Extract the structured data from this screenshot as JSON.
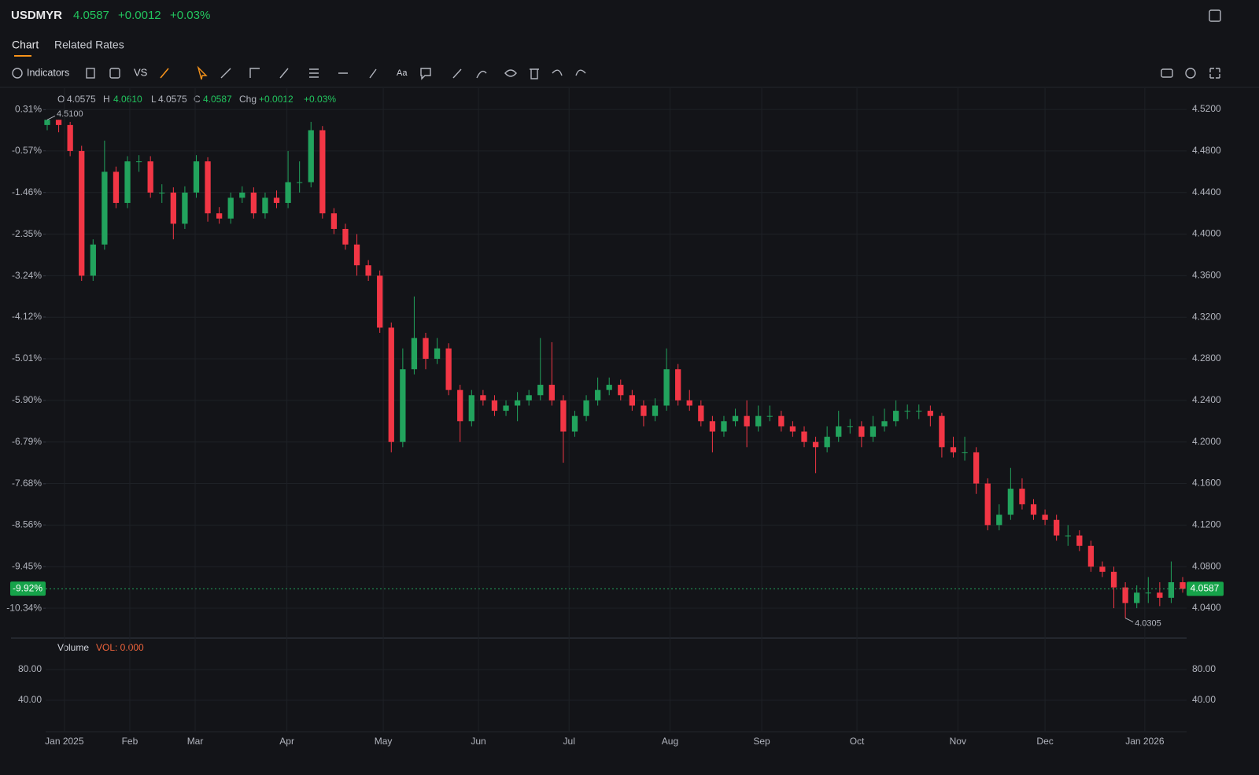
{
  "header": {
    "symbol": "USDMYR",
    "price": 4.0587,
    "change": {
      "value": 0.0012,
      "label": "+0.0012"
    },
    "change_pct": {
      "value": 0.03,
      "label": "+0.03%"
    }
  },
  "tabs": [
    "Chart",
    "Related Rates"
  ],
  "toolbar": {
    "indicators": "Indicators",
    "compare": "VS",
    "text": "Aa"
  },
  "chart_data": {
    "type": "candlestick",
    "up_color": "#22a35d",
    "down_color": "#f23645",
    "grid": true,
    "legend": [
      {
        "key": "O",
        "value": 4.0575
      },
      {
        "key": "H",
        "value": {
          "value": 4.061,
          "label": "4.0610"
        }
      },
      {
        "key": "L",
        "value": 4.0575
      },
      {
        "key": "C",
        "value": 4.0587
      },
      {
        "key": "Chg",
        "value": {
          "value": 0.0012,
          "label": "+0.0012"
        }
      },
      {
        "key": "",
        "value": {
          "value": 0.03,
          "label": "+0.03%"
        }
      }
    ],
    "open": [
      4.505,
      4.51,
      4.505,
      4.48,
      4.36,
      4.39,
      4.46,
      4.43,
      4.47,
      4.47,
      4.44,
      4.44,
      4.41,
      4.44,
      4.47,
      4.42,
      4.415,
      4.435,
      4.44,
      4.42,
      4.435,
      4.43,
      4.45,
      4.45,
      4.5,
      4.42,
      4.405,
      4.39,
      4.37,
      4.36,
      4.31,
      4.2,
      4.27,
      4.3,
      4.28,
      4.29,
      4.25,
      4.22,
      4.245,
      4.24,
      4.23,
      4.235,
      4.24,
      4.245,
      4.255,
      4.24,
      4.21,
      4.225,
      4.24,
      4.25,
      4.255,
      4.245,
      4.235,
      4.225,
      4.235,
      4.27,
      4.24,
      4.235,
      4.22,
      4.21,
      4.22,
      4.225,
      4.215,
      4.225,
      4.225,
      4.215,
      4.21,
      4.2,
      4.195,
      4.205,
      4.215,
      4.215,
      4.205,
      4.215,
      4.22,
      4.23,
      4.23,
      4.23,
      4.225,
      4.195,
      4.19,
      4.19,
      4.16,
      4.12,
      4.13,
      4.155,
      4.14,
      4.13,
      4.125,
      4.11,
      4.11,
      4.1,
      4.08,
      4.075,
      4.06,
      4.045,
      4.055,
      4.055,
      4.05,
      4.065
    ],
    "high": [
      4.51,
      4.51,
      4.508,
      4.485,
      4.395,
      4.49,
      4.465,
      4.475,
      4.476,
      4.475,
      4.448,
      4.445,
      4.446,
      4.476,
      4.474,
      4.426,
      4.44,
      4.446,
      4.445,
      4.44,
      4.442,
      4.48,
      4.47,
      4.508,
      4.504,
      4.425,
      4.41,
      4.4,
      4.375,
      4.365,
      4.315,
      4.29,
      4.34,
      4.305,
      4.3,
      4.295,
      4.255,
      4.25,
      4.25,
      4.245,
      4.24,
      4.248,
      4.25,
      4.3,
      4.296,
      4.245,
      4.23,
      4.245,
      4.262,
      4.262,
      4.26,
      4.25,
      4.24,
      4.242,
      4.29,
      4.275,
      4.25,
      4.24,
      4.225,
      4.225,
      4.232,
      4.24,
      4.235,
      4.235,
      4.23,
      4.22,
      4.215,
      4.205,
      4.215,
      4.23,
      4.222,
      4.22,
      4.225,
      4.232,
      4.24,
      4.236,
      4.236,
      4.235,
      4.228,
      4.205,
      4.205,
      4.195,
      4.165,
      4.14,
      4.175,
      4.165,
      4.145,
      4.135,
      4.13,
      4.12,
      4.115,
      4.105,
      4.085,
      4.08,
      4.065,
      4.062,
      4.07,
      4.065,
      4.085,
      4.07
    ],
    "low": [
      4.5,
      4.498,
      4.475,
      4.355,
      4.355,
      4.385,
      4.425,
      4.425,
      4.46,
      4.435,
      4.43,
      4.395,
      4.405,
      4.435,
      4.412,
      4.41,
      4.41,
      4.43,
      4.415,
      4.415,
      4.425,
      4.425,
      4.44,
      4.445,
      4.415,
      4.4,
      4.385,
      4.36,
      4.355,
      4.305,
      4.19,
      4.195,
      4.265,
      4.27,
      4.275,
      4.245,
      4.2,
      4.215,
      4.235,
      4.225,
      4.225,
      4.22,
      4.235,
      4.24,
      4.235,
      4.18,
      4.205,
      4.22,
      4.235,
      4.245,
      4.24,
      4.23,
      4.215,
      4.22,
      4.23,
      4.235,
      4.23,
      4.215,
      4.19,
      4.205,
      4.215,
      4.195,
      4.21,
      4.22,
      4.21,
      4.205,
      4.195,
      4.17,
      4.19,
      4.2,
      4.208,
      4.195,
      4.2,
      4.21,
      4.215,
      4.222,
      4.222,
      4.215,
      4.185,
      4.185,
      4.182,
      4.15,
      4.115,
      4.115,
      4.125,
      4.135,
      4.125,
      4.12,
      4.105,
      4.1,
      4.095,
      4.075,
      4.07,
      4.04,
      4.0305,
      4.04,
      4.045,
      4.042,
      4.045,
      4.055
    ],
    "close": [
      4.51,
      4.505,
      4.48,
      4.36,
      4.39,
      4.46,
      4.43,
      4.47,
      4.47,
      4.44,
      4.44,
      4.41,
      4.44,
      4.47,
      4.42,
      4.415,
      4.435,
      4.44,
      4.42,
      4.435,
      4.43,
      4.45,
      4.45,
      4.5,
      4.42,
      4.405,
      4.39,
      4.37,
      4.36,
      4.31,
      4.2,
      4.27,
      4.3,
      4.28,
      4.29,
      4.25,
      4.22,
      4.245,
      4.24,
      4.23,
      4.235,
      4.24,
      4.245,
      4.255,
      4.24,
      4.21,
      4.225,
      4.24,
      4.25,
      4.255,
      4.245,
      4.235,
      4.225,
      4.235,
      4.27,
      4.24,
      4.235,
      4.22,
      4.21,
      4.22,
      4.225,
      4.215,
      4.225,
      4.225,
      4.215,
      4.21,
      4.2,
      4.195,
      4.205,
      4.215,
      4.215,
      4.205,
      4.215,
      4.22,
      4.23,
      4.23,
      4.23,
      4.225,
      4.195,
      4.19,
      4.19,
      4.16,
      4.12,
      4.13,
      4.155,
      4.14,
      4.13,
      4.125,
      4.11,
      4.11,
      4.1,
      4.08,
      4.075,
      4.06,
      4.045,
      4.055,
      4.055,
      4.05,
      4.065,
      4.0587
    ],
    "xticks": [
      {
        "value": 1.5,
        "label": "Jan 2025"
      },
      {
        "value": 7.2,
        "label": "Feb"
      },
      {
        "value": 12.9,
        "label": "Mar"
      },
      {
        "value": 20.9,
        "label": "Apr"
      },
      {
        "value": 29.3,
        "label": "May"
      },
      {
        "value": 37.6,
        "label": "Jun"
      },
      {
        "value": 45.5,
        "label": "Jul"
      },
      {
        "value": 54.3,
        "label": "Aug"
      },
      {
        "value": 62.3,
        "label": "Sep"
      },
      {
        "value": 70.6,
        "label": "Oct"
      },
      {
        "value": 79.4,
        "label": "Nov"
      },
      {
        "value": 87.0,
        "label": "Dec"
      },
      {
        "value": 95.7,
        "label": "Jan 2026"
      }
    ],
    "ylim": [
      4.012,
      4.5405
    ],
    "yticks": [
      {
        "value": 4.52,
        "label": "4.5200"
      },
      {
        "value": 4.48,
        "label": "4.4800"
      },
      {
        "value": 4.44,
        "label": "4.4400"
      },
      {
        "value": 4.4,
        "label": "4.4000"
      },
      {
        "value": 4.36,
        "label": "4.3600"
      },
      {
        "value": 4.32,
        "label": "4.3200"
      },
      {
        "value": 4.28,
        "label": "4.2800"
      },
      {
        "value": 4.24,
        "label": "4.2400"
      },
      {
        "value": 4.2,
        "label": "4.2000"
      },
      {
        "value": 4.16,
        "label": "4.1600"
      },
      {
        "value": 4.12,
        "label": "4.1200"
      },
      {
        "value": 4.08,
        "label": "4.0800"
      },
      {
        "value": 4.04,
        "label": "4.0400"
      }
    ],
    "y2lim": [
      -10.96,
      0.77
    ],
    "y2ticks": [
      {
        "value": 0.31,
        "label": "0.31%"
      },
      {
        "value": -0.57,
        "label": "-0.57%"
      },
      {
        "value": -1.46,
        "label": "-1.46%"
      },
      {
        "value": -2.35,
        "label": "-2.35%"
      },
      {
        "value": -3.24,
        "label": "-3.24%"
      },
      {
        "value": -4.12,
        "label": "-4.12%"
      },
      {
        "value": -5.01,
        "label": "-5.01%"
      },
      {
        "value": -5.9,
        "label": "-5.90%"
      },
      {
        "value": -6.79,
        "label": "-6.79%"
      },
      {
        "value": -7.68,
        "label": "-7.68%"
      },
      {
        "value": -8.56,
        "label": "-8.56%"
      },
      {
        "value": -9.45,
        "label": "-9.45%"
      },
      {
        "value": -10.34,
        "label": "-10.34%"
      }
    ],
    "last_price": 4.0587,
    "last_pct": {
      "value": -9.92,
      "label": "-9.92%"
    },
    "high_marker": {
      "value": 4.51,
      "label": "4.5100"
    },
    "low_marker": {
      "value": 4.0305,
      "label": "4.0305"
    },
    "volume_title": "Volume",
    "volume_readout": "VOL: 0.000",
    "volume_ylim": [
      0,
      120
    ],
    "volume_yticks": [
      {
        "value": 80,
        "label": "80.00"
      },
      {
        "value": 40,
        "label": "40.00"
      }
    ]
  }
}
